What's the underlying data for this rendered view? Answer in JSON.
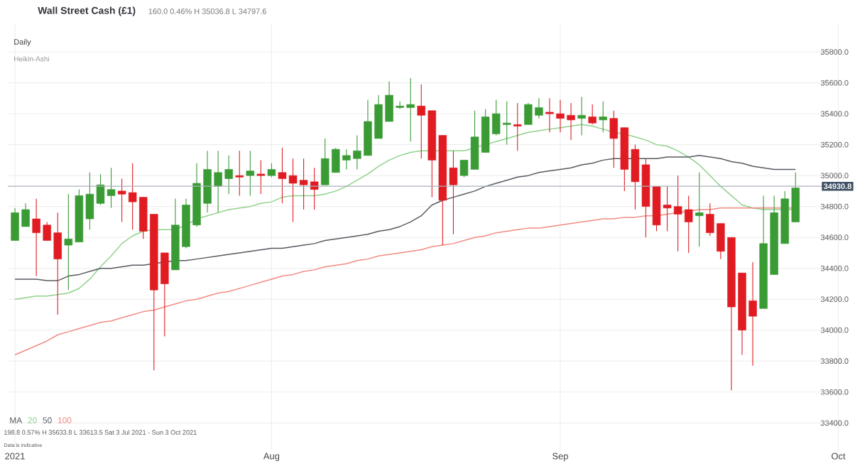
{
  "chart_data": {
    "type": "candlestick",
    "title": "Wall Street Cash (£1)",
    "subtitle": "160.0  0.46%  H 35036.8  L 34797.6",
    "annotations": [
      "Daily",
      "Heikin-Ashi",
      "198.8     0.57%     H 35633.8   L 33613.5   Sat 3 Jul 2021 - Sun 3 Oct 2021",
      "Data is indicative"
    ],
    "legend_title": "MA",
    "legend": "bottom left",
    "grid": true,
    "categories": [
      "2021",
      null,
      null,
      null,
      null,
      null,
      null,
      null,
      null,
      null,
      null,
      null,
      null,
      null,
      null,
      null,
      null,
      null,
      null,
      null,
      null,
      null,
      null,
      null,
      "Aug",
      null,
      null,
      null,
      null,
      null,
      null,
      null,
      null,
      null,
      null,
      null,
      null,
      null,
      null,
      null,
      null,
      null,
      null,
      null,
      null,
      null,
      null,
      null,
      null,
      null,
      null,
      "Sep",
      null,
      null,
      null,
      null,
      null,
      null,
      null,
      null,
      null,
      null,
      null,
      null,
      null,
      null,
      null,
      null,
      null,
      null,
      null,
      null,
      null,
      null,
      null,
      null,
      null,
      "Oct"
    ],
    "ylim": [
      33220,
      35980
    ],
    "yticks": [
      {
        "value": 33400,
        "label": "33400.0"
      },
      {
        "value": 33600,
        "label": "33600.0"
      },
      {
        "value": 33800,
        "label": "33800.0"
      },
      {
        "value": 34000,
        "label": "34000.0"
      },
      {
        "value": 34200,
        "label": "34200.0"
      },
      {
        "value": 34400,
        "label": "34400.0"
      },
      {
        "value": 34600,
        "label": "34600.0"
      },
      {
        "value": 34800,
        "label": "34800.0"
      },
      {
        "value": 35000,
        "label": "35000.0"
      },
      {
        "value": 35200,
        "label": "35200.0"
      },
      {
        "value": 35400,
        "label": "35400.0"
      },
      {
        "value": 35600,
        "label": "35600.0"
      },
      {
        "value": 35800,
        "label": "35800.0"
      }
    ],
    "ref_lines": [
      {
        "axis": "y",
        "value": 34930.8,
        "label": "34930.8",
        "color": "#aab2bb"
      }
    ],
    "ohlc": [
      [
        34580,
        34790,
        34580,
        34760
      ],
      [
        34670,
        34820,
        34670,
        34780
      ],
      [
        34720,
        34850,
        34350,
        34630
      ],
      [
        34680,
        34700,
        34580,
        34580
      ],
      [
        34630,
        34760,
        34100,
        34460
      ],
      [
        34550,
        34880,
        34260,
        34590
      ],
      [
        34570,
        34910,
        34570,
        34870
      ],
      [
        34720,
        35020,
        34650,
        34880
      ],
      [
        34820,
        35010,
        34810,
        34940
      ],
      [
        34870,
        35050,
        34790,
        34910
      ],
      [
        34900,
        34980,
        34700,
        34880
      ],
      [
        34890,
        35080,
        34650,
        34830
      ],
      [
        34860,
        34860,
        34590,
        34640
      ],
      [
        34750,
        34750,
        33740,
        34260
      ],
      [
        34500,
        34500,
        33960,
        34300
      ],
      [
        34390,
        34850,
        34390,
        34680
      ],
      [
        34540,
        34850,
        34530,
        34810
      ],
      [
        34680,
        35080,
        34670,
        34950
      ],
      [
        34820,
        35160,
        34760,
        35040
      ],
      [
        34930,
        35160,
        34760,
        35020
      ],
      [
        34980,
        35130,
        34880,
        35040
      ],
      [
        35000,
        35160,
        34870,
        34990
      ],
      [
        35000,
        35160,
        34870,
        35030
      ],
      [
        35010,
        35100,
        34880,
        35000
      ],
      [
        35000,
        35080,
        34990,
        35040
      ],
      [
        35020,
        35180,
        34820,
        34980
      ],
      [
        35000,
        35110,
        34700,
        34950
      ],
      [
        34970,
        35110,
        34780,
        34940
      ],
      [
        34960,
        35050,
        34780,
        34910
      ],
      [
        34940,
        35240,
        34940,
        35110
      ],
      [
        35020,
        35180,
        35020,
        35170
      ],
      [
        35100,
        35170,
        35040,
        35130
      ],
      [
        35110,
        35260,
        35040,
        35160
      ],
      [
        35130,
        35490,
        35130,
        35350
      ],
      [
        35240,
        35520,
        35240,
        35460
      ],
      [
        35350,
        35610,
        35350,
        35520
      ],
      [
        35440,
        35480,
        35430,
        35450
      ],
      [
        35440,
        35630,
        35220,
        35460
      ],
      [
        35450,
        35590,
        35110,
        35390
      ],
      [
        35420,
        35420,
        34860,
        35100
      ],
      [
        35260,
        35260,
        34550,
        34840
      ],
      [
        35050,
        35160,
        34620,
        34940
      ],
      [
        35000,
        35100,
        34990,
        35100
      ],
      [
        35040,
        35420,
        35040,
        35250
      ],
      [
        35150,
        35430,
        35150,
        35380
      ],
      [
        35270,
        35490,
        35260,
        35400
      ],
      [
        35330,
        35480,
        35200,
        35340
      ],
      [
        35330,
        35470,
        35160,
        35320
      ],
      [
        35330,
        35470,
        35330,
        35460
      ],
      [
        35390,
        35500,
        35370,
        35440
      ],
      [
        35410,
        35500,
        35280,
        35400
      ],
      [
        35400,
        35490,
        35280,
        35370
      ],
      [
        35390,
        35470,
        35230,
        35360
      ],
      [
        35370,
        35510,
        35260,
        35390
      ],
      [
        35380,
        35460,
        35330,
        35340
      ],
      [
        35360,
        35480,
        35280,
        35380
      ],
      [
        35370,
        35420,
        35050,
        35240
      ],
      [
        35310,
        35310,
        34900,
        35040
      ],
      [
        35170,
        35200,
        34780,
        34960
      ],
      [
        35070,
        35110,
        34600,
        34800
      ],
      [
        34930,
        34930,
        34640,
        34680
      ],
      [
        34810,
        34930,
        34640,
        34790
      ],
      [
        34800,
        35000,
        34510,
        34750
      ],
      [
        34780,
        34870,
        34500,
        34700
      ],
      [
        34740,
        35020,
        34540,
        34760
      ],
      [
        34750,
        34820,
        34610,
        34630
      ],
      [
        34690,
        34690,
        34460,
        34510
      ],
      [
        34600,
        34600,
        33610,
        34150
      ],
      [
        34370,
        34370,
        33840,
        34000
      ],
      [
        34190,
        34440,
        33770,
        34090
      ],
      [
        34140,
        34870,
        34140,
        34560
      ],
      [
        34360,
        34870,
        34360,
        34760
      ],
      [
        34560,
        34900,
        34560,
        34850
      ],
      [
        34700,
        35020,
        34700,
        34920
      ],
      null,
      null,
      null,
      null
    ],
    "colors": [
      "#3a9b35",
      "#3a9b35",
      "#e01b22",
      "#e01b22",
      "#e01b22",
      "#3a9b35",
      "#3a9b35",
      "#3a9b35",
      "#3a9b35",
      "#3a9b35",
      "#e01b22",
      "#e01b22",
      "#e01b22",
      "#e01b22",
      "#e01b22",
      "#3a9b35",
      "#3a9b35",
      "#3a9b35",
      "#3a9b35",
      "#3a9b35",
      "#3a9b35",
      "#e01b22",
      "#3a9b35",
      "#e01b22",
      "#3a9b35",
      "#e01b22",
      "#e01b22",
      "#e01b22",
      "#e01b22",
      "#3a9b35",
      "#3a9b35",
      "#3a9b35",
      "#3a9b35",
      "#3a9b35",
      "#3a9b35",
      "#3a9b35",
      "#3a9b35",
      "#3a9b35",
      "#e01b22",
      "#e01b22",
      "#e01b22",
      "#e01b22",
      "#3a9b35",
      "#3a9b35",
      "#3a9b35",
      "#3a9b35",
      "#3a9b35",
      "#e01b22",
      "#3a9b35",
      "#3a9b35",
      "#e01b22",
      "#e01b22",
      "#e01b22",
      "#3a9b35",
      "#e01b22",
      "#3a9b35",
      "#e01b22",
      "#e01b22",
      "#e01b22",
      "#e01b22",
      "#e01b22",
      "#e01b22",
      "#e01b22",
      "#e01b22",
      "#3a9b35",
      "#e01b22",
      "#e01b22",
      "#e01b22",
      "#e01b22",
      "#e01b22",
      "#3a9b35",
      "#3a9b35",
      "#3a9b35",
      "#3a9b35",
      null,
      null,
      null,
      null
    ],
    "series": [
      {
        "type": "line",
        "name": "20",
        "color": "#8fd18a",
        "values": [
          34200,
          34210,
          34220,
          34220,
          34230,
          34240,
          34270,
          34330,
          34410,
          34480,
          34560,
          34610,
          34640,
          34650,
          34650,
          34650,
          34680,
          34720,
          34740,
          34760,
          34780,
          34790,
          34800,
          34820,
          34830,
          34860,
          34870,
          34870,
          34870,
          34880,
          34900,
          34930,
          34970,
          35010,
          35060,
          35100,
          35130,
          35150,
          35160,
          35160,
          35160,
          35160,
          35160,
          35180,
          35200,
          35220,
          35240,
          35260,
          35280,
          35290,
          35300,
          35310,
          35320,
          35330,
          35320,
          35300,
          35280,
          35270,
          35250,
          35230,
          35200,
          35190,
          35160,
          35120,
          35070,
          35000,
          34930,
          34870,
          34810,
          34790,
          34780,
          34780,
          34780,
          34780,
          null,
          null,
          null,
          null
        ]
      },
      {
        "type": "line",
        "name": "50",
        "color": "#555a60",
        "values": [
          34330,
          34330,
          34330,
          34320,
          34320,
          34350,
          34360,
          34380,
          34400,
          34400,
          34410,
          34420,
          34420,
          34430,
          34440,
          34450,
          34450,
          34460,
          34470,
          34480,
          34490,
          34500,
          34510,
          34520,
          34530,
          34530,
          34540,
          34550,
          34560,
          34580,
          34590,
          34600,
          34610,
          34620,
          34640,
          34650,
          34670,
          34700,
          34740,
          34810,
          34840,
          34860,
          34880,
          34900,
          34930,
          34950,
          34970,
          34990,
          35000,
          35020,
          35030,
          35040,
          35050,
          35070,
          35080,
          35100,
          35110,
          35110,
          35110,
          35110,
          35110,
          35120,
          35120,
          35120,
          35130,
          35120,
          35110,
          35090,
          35080,
          35060,
          35050,
          35040,
          35040,
          35040,
          null,
          null,
          null,
          null
        ]
      },
      {
        "type": "line",
        "name": "100",
        "color": "#f28b82",
        "values": [
          33840,
          33870,
          33900,
          33930,
          33970,
          33990,
          34010,
          34030,
          34050,
          34060,
          34080,
          34100,
          34120,
          34130,
          34150,
          34170,
          34190,
          34200,
          34220,
          34240,
          34250,
          34270,
          34290,
          34310,
          34330,
          34350,
          34360,
          34380,
          34390,
          34410,
          34420,
          34430,
          34450,
          34460,
          34480,
          34490,
          34500,
          34510,
          34520,
          34540,
          34550,
          34560,
          34580,
          34600,
          34610,
          34630,
          34640,
          34650,
          34660,
          34660,
          34670,
          34680,
          34690,
          34700,
          34710,
          34720,
          34720,
          34730,
          34730,
          34740,
          34740,
          34750,
          34760,
          34770,
          34780,
          34780,
          34790,
          34790,
          34790,
          34790,
          34790,
          34790,
          34790,
          34790,
          null,
          null,
          null,
          null
        ]
      }
    ]
  }
}
